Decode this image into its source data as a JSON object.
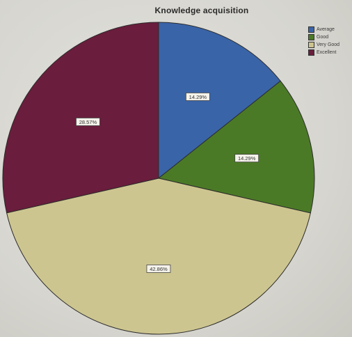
{
  "chart_data": {
    "type": "pie",
    "title": "Knowledge acquisition",
    "categories": [
      "Average",
      "Good",
      "Very Good",
      "Excellent"
    ],
    "values": [
      14.29,
      14.29,
      42.86,
      28.57
    ],
    "labels": [
      "14.29%",
      "14.29%",
      "42.86%",
      "28.57%"
    ],
    "colors": [
      "#3a64a8",
      "#4b7a26",
      "#cdc590",
      "#6a1d3c"
    ],
    "start_angle_deg": 0,
    "direction": "clockwise",
    "legend_position": "top-right"
  }
}
